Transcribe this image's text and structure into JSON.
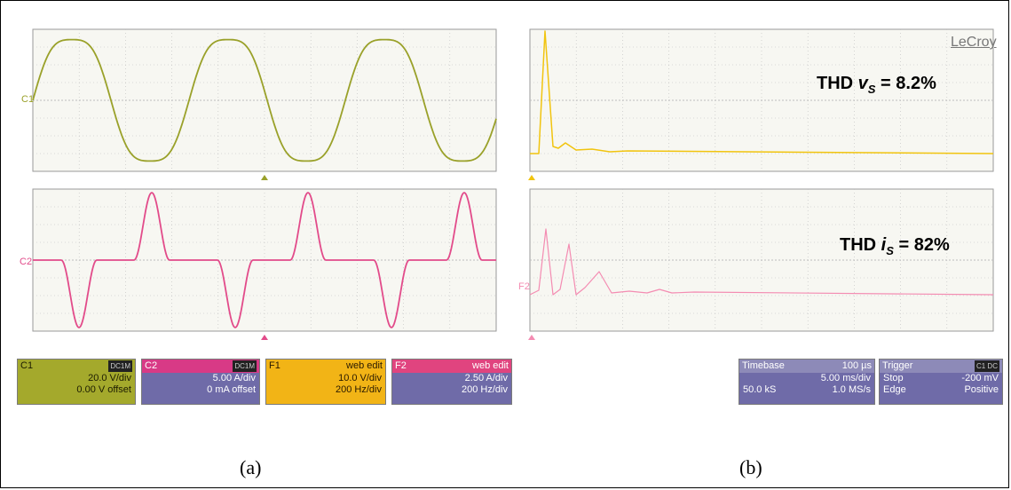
{
  "brand": "LeCroy",
  "thd_vs": {
    "prefix": "THD ",
    "var": "v",
    "sub": "S",
    "suffix": " = 8.2%"
  },
  "thd_is": {
    "prefix": "THD ",
    "var": "i",
    "sub": "S",
    "suffix": " = 82%"
  },
  "captions": {
    "a": "(a)",
    "b": "(b)"
  },
  "channel_markers": {
    "c1": "C1",
    "c2": "C2",
    "f2": "F2"
  },
  "badges": {
    "c1": {
      "name": "C1",
      "tags": "DC1M",
      "line1": "20.0 V/div",
      "line2": "0.00 V offset"
    },
    "c2": {
      "name": "C2",
      "tags": "DC1M",
      "line1": "5.00 A/div",
      "line2": "0 mA offset"
    },
    "f1": {
      "name": "F1",
      "mode": "web edit",
      "line1": "10.0 V/div",
      "line2": "200 Hz/div"
    },
    "f2": {
      "name": "F2",
      "mode": "web edit",
      "line1": "2.50 A/div",
      "line2": "200 Hz/div"
    },
    "timebase": {
      "label": "Timebase",
      "value": "100 µs",
      "line1": "5.00 ms/div",
      "samples": "50.0 kS",
      "rate": "1.0 MS/s"
    },
    "trigger": {
      "label": "Trigger",
      "tags": "C1 DC",
      "mode": "Stop",
      "level": "-200 mV",
      "type": "Edge",
      "slope": "Positive"
    }
  },
  "colors": {
    "voltage": "#9aa12a",
    "current": "#e24b8a",
    "voltage_fft": "#f1c40f",
    "current_fft": "#f48cb2",
    "grid": "#bdbdbd"
  }
}
